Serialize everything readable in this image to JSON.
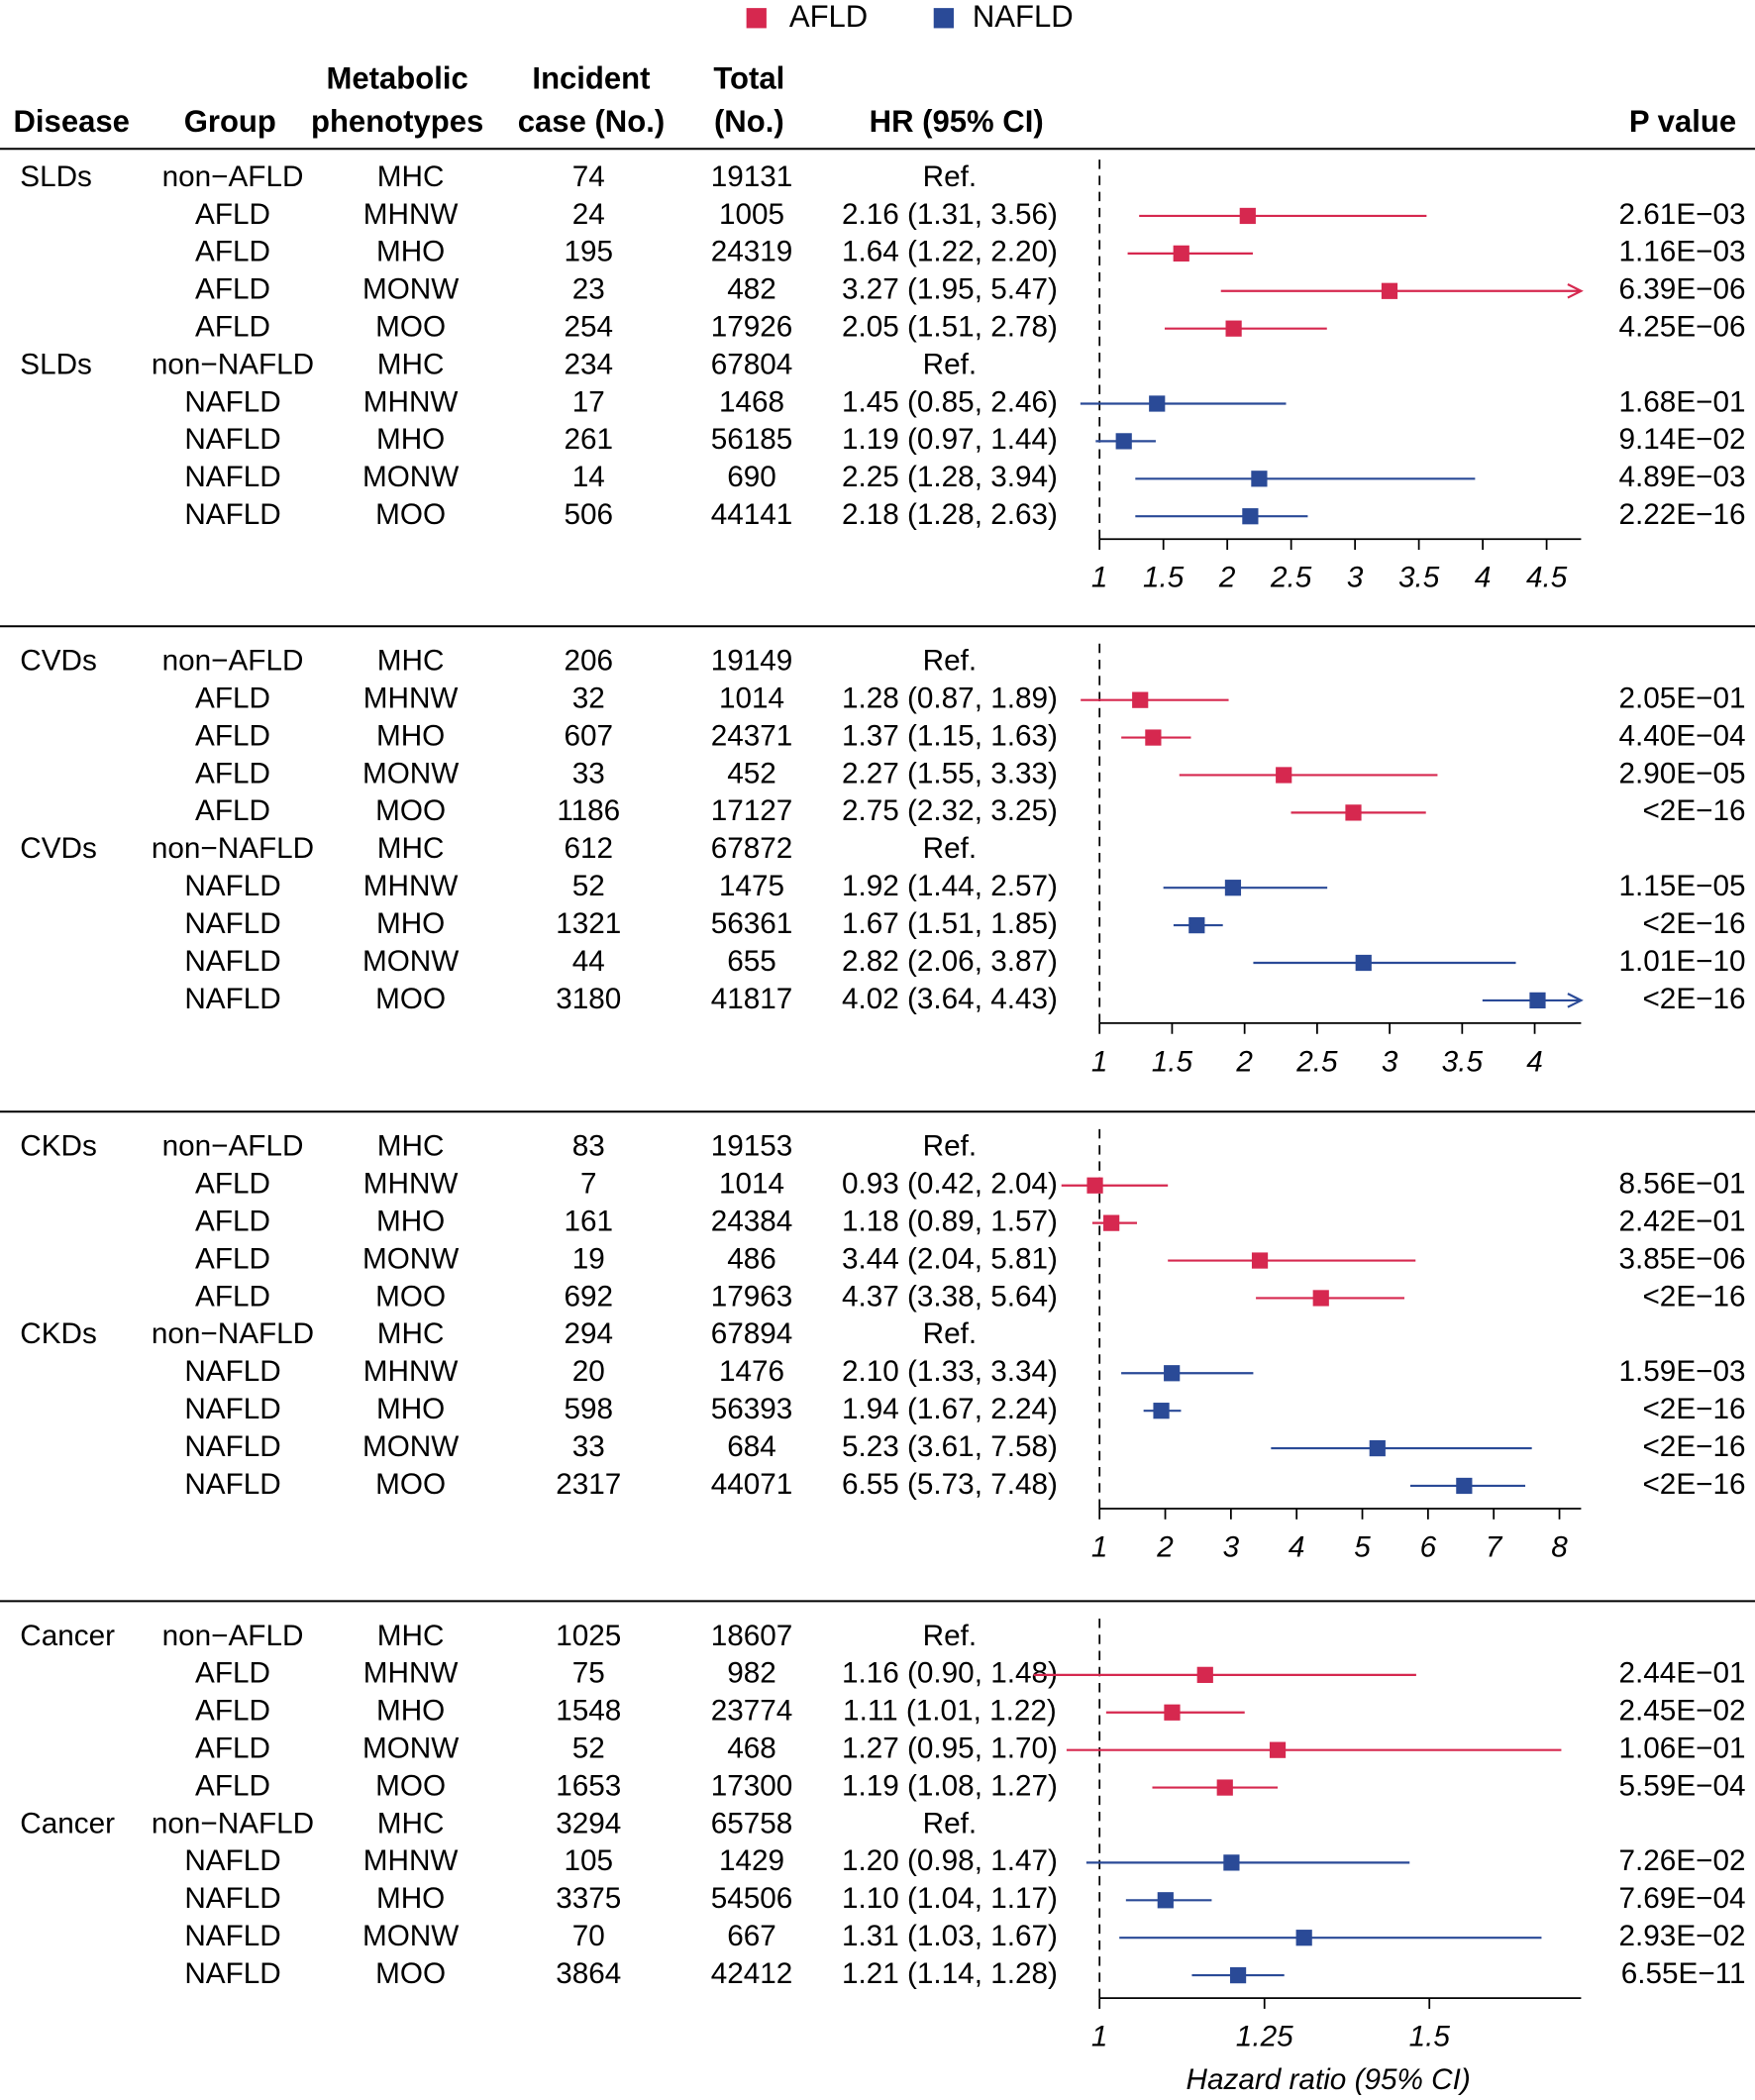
{
  "chart_data": [
    {
      "type": "forest",
      "xlim": [
        1,
        4.77
      ],
      "xticks": [
        1,
        1.5,
        2,
        2.5,
        3,
        3.5,
        4,
        4.5
      ],
      "series": [
        {
          "name": "AFLD",
          "color": "#d6284f",
          "rows": [
            {
              "disease": "SLDs",
              "group": "non−AFLD",
              "phenotype": "MHC",
              "incident": 74,
              "total": 19131,
              "hr_label": "Ref."
            },
            {
              "group": "AFLD",
              "phenotype": "MHNW",
              "incident": 24,
              "total": 1005,
              "hr_label": "2.16 (1.31, 3.56)",
              "hr": 2.16,
              "ci": [
                1.31,
                3.56
              ],
              "p": "2.61E−03"
            },
            {
              "group": "AFLD",
              "phenotype": "MHO",
              "incident": 195,
              "total": 24319,
              "hr_label": "1.64 (1.22, 2.20)",
              "hr": 1.64,
              "ci": [
                1.22,
                2.2
              ],
              "p": "1.16E−03"
            },
            {
              "group": "AFLD",
              "phenotype": "MONW",
              "incident": 23,
              "total": 482,
              "hr_label": "3.27 (1.95, 5.47)",
              "hr": 3.27,
              "ci": [
                1.95,
                5.47
              ],
              "p": "6.39E−06"
            },
            {
              "group": "AFLD",
              "phenotype": "MOO",
              "incident": 254,
              "total": 17926,
              "hr_label": "2.05 (1.51, 2.78)",
              "hr": 2.05,
              "ci": [
                1.51,
                2.78
              ],
              "p": "4.25E−06"
            }
          ]
        },
        {
          "name": "NAFLD",
          "color": "#2a4a97",
          "rows": [
            {
              "disease": "SLDs",
              "group": "non−NAFLD",
              "phenotype": "MHC",
              "incident": 234,
              "total": 67804,
              "hr_label": "Ref."
            },
            {
              "group": "NAFLD",
              "phenotype": "MHNW",
              "incident": 17,
              "total": 1468,
              "hr_label": "1.45 (0.85, 2.46)",
              "hr": 1.45,
              "ci": [
                0.85,
                2.46
              ],
              "p": "1.68E−01"
            },
            {
              "group": "NAFLD",
              "phenotype": "MHO",
              "incident": 261,
              "total": 56185,
              "hr_label": "1.19 (0.97, 1.44)",
              "hr": 1.19,
              "ci": [
                0.97,
                1.44
              ],
              "p": "9.14E−02"
            },
            {
              "group": "NAFLD",
              "phenotype": "MONW",
              "incident": 14,
              "total": 690,
              "hr_label": "2.25 (1.28, 3.94)",
              "hr": 2.25,
              "ci": [
                1.28,
                3.94
              ],
              "p": "4.89E−03"
            },
            {
              "group": "NAFLD",
              "phenotype": "MOO",
              "incident": 506,
              "total": 44141,
              "hr_label": "2.18 (1.28, 2.63)",
              "hr": 2.18,
              "ci": [
                1.28,
                2.63
              ],
              "p": "2.22E−16"
            }
          ]
        }
      ]
    },
    {
      "type": "forest",
      "xlim": [
        1,
        4.32
      ],
      "xticks": [
        1,
        1.5,
        2,
        2.5,
        3,
        3.5,
        4
      ],
      "series": [
        {
          "name": "AFLD",
          "color": "#d6284f",
          "rows": [
            {
              "disease": "CVDs",
              "group": "non−AFLD",
              "phenotype": "MHC",
              "incident": 206,
              "total": 19149,
              "hr_label": "Ref."
            },
            {
              "group": "AFLD",
              "phenotype": "MHNW",
              "incident": 32,
              "total": 1014,
              "hr_label": "1.28 (0.87, 1.89)",
              "hr": 1.28,
              "ci": [
                0.87,
                1.89
              ],
              "p": "2.05E−01"
            },
            {
              "group": "AFLD",
              "phenotype": "MHO",
              "incident": 607,
              "total": 24371,
              "hr_label": "1.37 (1.15, 1.63)",
              "hr": 1.37,
              "ci": [
                1.15,
                1.63
              ],
              "p": "4.40E−04"
            },
            {
              "group": "AFLD",
              "phenotype": "MONW",
              "incident": 33,
              "total": 452,
              "hr_label": "2.27 (1.55, 3.33)",
              "hr": 2.27,
              "ci": [
                1.55,
                3.33
              ],
              "p": "2.90E−05"
            },
            {
              "group": "AFLD",
              "phenotype": "MOO",
              "incident": 1186,
              "total": 17127,
              "hr_label": "2.75 (2.32, 3.25)",
              "hr": 2.75,
              "ci": [
                2.32,
                3.25
              ],
              "p": "<2E−16"
            }
          ]
        },
        {
          "name": "NAFLD",
          "color": "#2a4a97",
          "rows": [
            {
              "disease": "CVDs",
              "group": "non−NAFLD",
              "phenotype": "MHC",
              "incident": 612,
              "total": 67872,
              "hr_label": "Ref."
            },
            {
              "group": "NAFLD",
              "phenotype": "MHNW",
              "incident": 52,
              "total": 1475,
              "hr_label": "1.92 (1.44, 2.57)",
              "hr": 1.92,
              "ci": [
                1.44,
                2.57
              ],
              "p": "1.15E−05"
            },
            {
              "group": "NAFLD",
              "phenotype": "MHO",
              "incident": 1321,
              "total": 56361,
              "hr_label": "1.67 (1.51, 1.85)",
              "hr": 1.67,
              "ci": [
                1.51,
                1.85
              ],
              "p": "<2E−16"
            },
            {
              "group": "NAFLD",
              "phenotype": "MONW",
              "incident": 44,
              "total": 655,
              "hr_label": "2.82 (2.06, 3.87)",
              "hr": 2.82,
              "ci": [
                2.06,
                3.87
              ],
              "p": "1.01E−10"
            },
            {
              "group": "NAFLD",
              "phenotype": "MOO",
              "incident": 3180,
              "total": 41817,
              "hr_label": "4.02 (3.64, 4.43)",
              "hr": 4.02,
              "ci": [
                3.64,
                4.43
              ],
              "p": "<2E−16"
            }
          ]
        }
      ]
    },
    {
      "type": "forest",
      "xlim": [
        1,
        8.33
      ],
      "xticks": [
        1,
        2,
        3,
        4,
        5,
        6,
        7,
        8
      ],
      "series": [
        {
          "name": "AFLD",
          "color": "#d6284f",
          "rows": [
            {
              "disease": "CKDs",
              "group": "non−AFLD",
              "phenotype": "MHC",
              "incident": 83,
              "total": 19153,
              "hr_label": "Ref."
            },
            {
              "group": "AFLD",
              "phenotype": "MHNW",
              "incident": 7,
              "total": 1014,
              "hr_label": "0.93 (0.42, 2.04)",
              "hr": 0.93,
              "ci": [
                0.42,
                2.04
              ],
              "p": "8.56E−01"
            },
            {
              "group": "AFLD",
              "phenotype": "MHO",
              "incident": 161,
              "total": 24384,
              "hr_label": "1.18 (0.89, 1.57)",
              "hr": 1.18,
              "ci": [
                0.89,
                1.57
              ],
              "p": "2.42E−01"
            },
            {
              "group": "AFLD",
              "phenotype": "MONW",
              "incident": 19,
              "total": 486,
              "hr_label": "3.44 (2.04, 5.81)",
              "hr": 3.44,
              "ci": [
                2.04,
                5.81
              ],
              "p": "3.85E−06"
            },
            {
              "group": "AFLD",
              "phenotype": "MOO",
              "incident": 692,
              "total": 17963,
              "hr_label": "4.37 (3.38, 5.64)",
              "hr": 4.37,
              "ci": [
                3.38,
                5.64
              ],
              "p": "<2E−16"
            }
          ]
        },
        {
          "name": "NAFLD",
          "color": "#2a4a97",
          "rows": [
            {
              "disease": "CKDs",
              "group": "non−NAFLD",
              "phenotype": "MHC",
              "incident": 294,
              "total": 67894,
              "hr_label": "Ref."
            },
            {
              "group": "NAFLD",
              "phenotype": "MHNW",
              "incident": 20,
              "total": 1476,
              "hr_label": "2.10 (1.33, 3.34)",
              "hr": 2.1,
              "ci": [
                1.33,
                3.34
              ],
              "p": "1.59E−03"
            },
            {
              "group": "NAFLD",
              "phenotype": "MHO",
              "incident": 598,
              "total": 56393,
              "hr_label": "1.94 (1.67, 2.24)",
              "hr": 1.94,
              "ci": [
                1.67,
                2.24
              ],
              "p": "<2E−16"
            },
            {
              "group": "NAFLD",
              "phenotype": "MONW",
              "incident": 33,
              "total": 684,
              "hr_label": "5.23 (3.61, 7.58)",
              "hr": 5.23,
              "ci": [
                3.61,
                7.58
              ],
              "p": "<2E−16"
            },
            {
              "group": "NAFLD",
              "phenotype": "MOO",
              "incident": 2317,
              "total": 44071,
              "hr_label": "6.55 (5.73, 7.48)",
              "hr": 6.55,
              "ci": [
                5.73,
                7.48
              ],
              "p": "<2E−16"
            }
          ]
        }
      ]
    },
    {
      "type": "forest",
      "xlim": [
        1,
        1.73
      ],
      "xticks": [
        1,
        1.25,
        1.5
      ],
      "x_label": "Hazard ratio (95% CI)",
      "series": [
        {
          "name": "AFLD",
          "color": "#d6284f",
          "rows": [
            {
              "disease": "Cancer",
              "group": "non−AFLD",
              "phenotype": "MHC",
              "incident": 1025,
              "total": 18607,
              "hr_label": "Ref."
            },
            {
              "group": "AFLD",
              "phenotype": "MHNW",
              "incident": 75,
              "total": 982,
              "hr_label": "1.16 (0.90, 1.48)",
              "hr": 1.16,
              "ci": [
                0.9,
                1.48
              ],
              "p": "2.44E−01"
            },
            {
              "group": "AFLD",
              "phenotype": "MHO",
              "incident": 1548,
              "total": 23774,
              "hr_label": "1.11 (1.01, 1.22)",
              "hr": 1.11,
              "ci": [
                1.01,
                1.22
              ],
              "p": "2.45E−02"
            },
            {
              "group": "AFLD",
              "phenotype": "MONW",
              "incident": 52,
              "total": 468,
              "hr_label": "1.27 (0.95, 1.70)",
              "hr": 1.27,
              "ci": [
                0.95,
                1.7
              ],
              "p": "1.06E−01"
            },
            {
              "group": "AFLD",
              "phenotype": "MOO",
              "incident": 1653,
              "total": 17300,
              "hr_label": "1.19 (1.08, 1.27)",
              "hr": 1.19,
              "ci": [
                1.08,
                1.27
              ],
              "p": "5.59E−04"
            }
          ]
        },
        {
          "name": "NAFLD",
          "color": "#2a4a97",
          "rows": [
            {
              "disease": "Cancer",
              "group": "non−NAFLD",
              "phenotype": "MHC",
              "incident": 3294,
              "total": 65758,
              "hr_label": "Ref."
            },
            {
              "group": "NAFLD",
              "phenotype": "MHNW",
              "incident": 105,
              "total": 1429,
              "hr_label": "1.20 (0.98, 1.47)",
              "hr": 1.2,
              "ci": [
                0.98,
                1.47
              ],
              "p": "7.26E−02"
            },
            {
              "group": "NAFLD",
              "phenotype": "MHO",
              "incident": 3375,
              "total": 54506,
              "hr_label": "1.10 (1.04, 1.17)",
              "hr": 1.1,
              "ci": [
                1.04,
                1.17
              ],
              "p": "7.69E−04"
            },
            {
              "group": "NAFLD",
              "phenotype": "MONW",
              "incident": 70,
              "total": 667,
              "hr_label": "1.31 (1.03, 1.67)",
              "hr": 1.31,
              "ci": [
                1.03,
                1.67
              ],
              "p": "2.93E−02"
            },
            {
              "group": "NAFLD",
              "phenotype": "MOO",
              "incident": 3864,
              "total": 42412,
              "hr_label": "1.21 (1.14, 1.28)",
              "hr": 1.21,
              "ci": [
                1.14,
                1.28
              ],
              "p": "6.55E−11"
            }
          ]
        }
      ]
    }
  ],
  "header": {
    "columns": [
      [
        "Disease"
      ],
      [
        "Group"
      ],
      [
        "Metabolic",
        "phenotypes"
      ],
      [
        "Incident",
        "case (No.)"
      ],
      [
        "Total",
        "(No.)"
      ],
      [
        "HR (95% CI)"
      ],
      [
        "P value"
      ]
    ]
  }
}
